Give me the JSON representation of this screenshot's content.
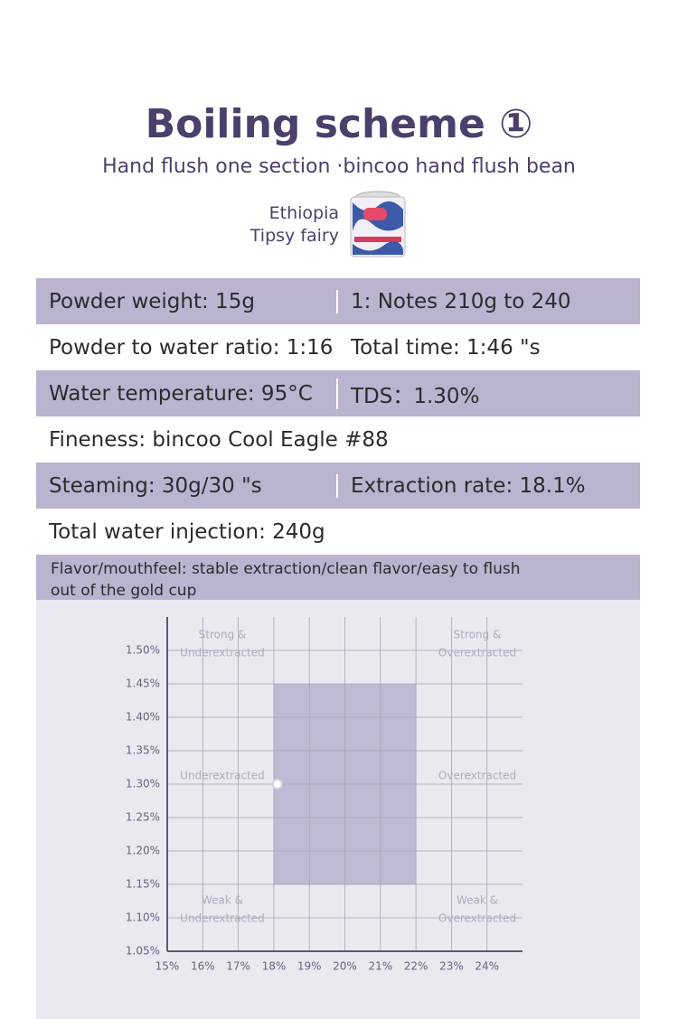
{
  "header": {
    "title": "Boiling scheme ①",
    "subtitle": "Hand flush one section ·bincoo hand flush bean",
    "bean": [
      "Ethiopia",
      "Tipsy fairy"
    ]
  },
  "table": {
    "rows": [
      [
        "Powder weight: 15g",
        "1: Notes 210g to 240"
      ],
      [
        "Powder to water ratio: 1:16",
        "Total time: 1:46 \"s"
      ],
      [
        "Water temperature: 95°C",
        "TDS：1.30%"
      ],
      [
        "Fineness: bincoo Cool Eagle #88"
      ],
      [
        "Steaming: 30g/30 \"s",
        "Extraction rate: 18.1%"
      ],
      [
        "Total water injection: 240g"
      ]
    ],
    "flavor": "Flavor/mouthfeel: stable extraction/clean flavor/easy to flush out of the gold cup"
  },
  "chart_data": {
    "type": "scatter",
    "x": [
      18.1
    ],
    "values": [
      1.3
    ],
    "color": "#ffffff",
    "ideal_zone": {
      "x": [
        18,
        22
      ],
      "y": [
        1.15,
        1.45
      ],
      "color": "#b9b0cf"
    },
    "xlim": [
      15,
      25
    ],
    "ylim": [
      1.05,
      1.55
    ],
    "xticks": [
      {
        "value": 15,
        "label": "15%"
      },
      {
        "value": 16,
        "label": "16%"
      },
      {
        "value": 17,
        "label": "17%"
      },
      {
        "value": 18,
        "label": "18%"
      },
      {
        "value": 19,
        "label": "19%"
      },
      {
        "value": 20,
        "label": "20%"
      },
      {
        "value": 21,
        "label": "21%"
      },
      {
        "value": 22,
        "label": "22%"
      },
      {
        "value": 23,
        "label": "23%"
      },
      {
        "value": 24,
        "label": "24%"
      }
    ],
    "yticks": [
      {
        "value": 1.05,
        "label": "1.05%"
      },
      {
        "value": 1.1,
        "label": "1.10%"
      },
      {
        "value": 1.15,
        "label": "1.15%"
      },
      {
        "value": 1.2,
        "label": "1.20%"
      },
      {
        "value": 1.25,
        "label": "1.25%"
      },
      {
        "value": 1.3,
        "label": "1.30%"
      },
      {
        "value": 1.35,
        "label": "1.35%"
      },
      {
        "value": 1.4,
        "label": "1.40%"
      },
      {
        "value": 1.45,
        "label": "1.45%"
      },
      {
        "value": 1.5,
        "label": "1.50%"
      }
    ],
    "grid": true,
    "zones": [
      [
        "Strong &",
        "Underextracted"
      ],
      [
        "Strong &",
        "Overextracted"
      ],
      [
        "Underextracted"
      ],
      [
        "Overextracted"
      ],
      [
        "Weak &",
        "Underextracted"
      ],
      [
        "Weak &",
        "Overextracted"
      ]
    ]
  }
}
